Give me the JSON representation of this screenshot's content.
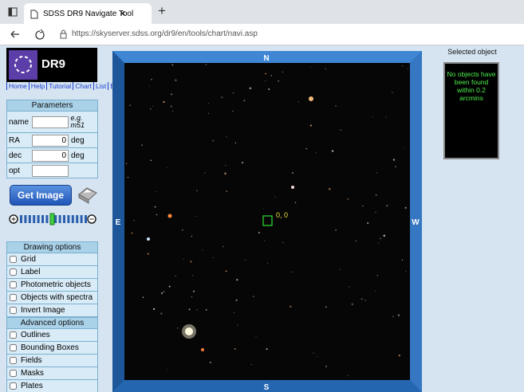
{
  "browser": {
    "tab_title": "SDSS DR9 Navigate Tool",
    "close": "×",
    "new_tab": "+",
    "url": "https://skyserver.sdss.org/dr9/en/tools/chart/navi.asp"
  },
  "sidebar": {
    "logo": "DR9",
    "links": [
      "Home",
      "Help",
      "Tutorial",
      "Chart",
      "List",
      "Explore"
    ],
    "parameters": {
      "title": "Parameters",
      "fields": [
        {
          "label": "name",
          "hint": "e.g. m51"
        },
        {
          "label": "RA",
          "value": "0",
          "unit": "deg"
        },
        {
          "label": "dec",
          "value": "0",
          "unit": "deg"
        },
        {
          "label": "opt"
        }
      ]
    },
    "button": "Get Image",
    "drawing_options": {
      "title": "Drawing options",
      "items": [
        "Grid",
        "Label",
        "Photometric objects",
        "Objects with spectra",
        "Invert Image"
      ]
    },
    "advanced_options": {
      "title": "Advanced options",
      "items": [
        "Outlines",
        "Bounding Boxes",
        "Fields",
        "Masks",
        "Plates"
      ]
    }
  },
  "image": {
    "compass": {
      "n": "N",
      "s": "S",
      "e": "E",
      "w": "W"
    },
    "center_label": "0, 0"
  },
  "selected": {
    "title": "Selected object",
    "message": "No objects have been found within 0.2 arcmins"
  }
}
